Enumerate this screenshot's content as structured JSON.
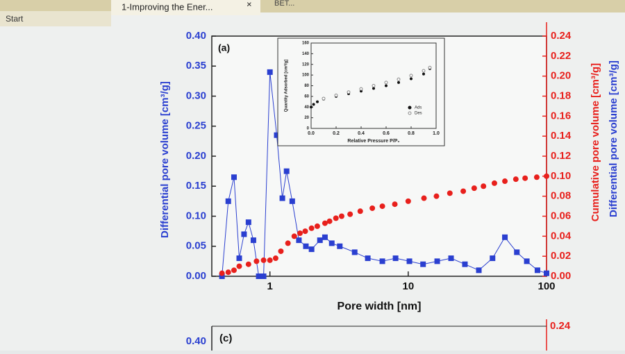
{
  "tabs": [
    "Start",
    "1-Improving the Ener...",
    "×",
    "BET..."
  ],
  "panel_c": {
    "label": "(c)",
    "ytick": "0.40",
    "y2tick": "0.24"
  },
  "chart_data": [
    {
      "type": "scatter",
      "annotation": "(a)",
      "xlabel": "Pore width [nm]",
      "ylabel": "Differential pore volume [cm³/g]",
      "y2labels": [
        "Cumulative pore volume [cm³/g]",
        "Differential pore volume [cm³/g]"
      ],
      "log_x": true,
      "xlim": [
        0.38,
        100
      ],
      "xticks": [
        1,
        10,
        100
      ],
      "ylim": [
        0,
        0.4
      ],
      "yticks": [
        {
          "value": 0,
          "label": "0.00"
        },
        {
          "value": 0.05,
          "label": "0.05"
        },
        {
          "value": 0.1,
          "label": "0.10"
        },
        {
          "value": 0.15,
          "label": "0.15"
        },
        {
          "value": 0.2,
          "label": "0.20"
        },
        {
          "value": 0.25,
          "label": "0.25"
        },
        {
          "value": 0.3,
          "label": "0.30"
        },
        {
          "value": 0.35,
          "label": "0.35"
        },
        {
          "value": 0.4,
          "label": "0.40"
        }
      ],
      "y2lim": [
        0,
        0.24
      ],
      "y2ticks": [
        {
          "value": 0,
          "label": "0.00"
        },
        {
          "value": 0.02,
          "label": "0.02"
        },
        {
          "value": 0.04,
          "label": "0.04"
        },
        {
          "value": 0.06,
          "label": "0.06"
        },
        {
          "value": 0.08,
          "label": "0.08"
        },
        {
          "value": 0.1,
          "label": "0.10"
        },
        {
          "value": 0.12,
          "label": "0.12"
        },
        {
          "value": 0.14,
          "label": "0.14"
        },
        {
          "value": 0.16,
          "label": "0.16"
        },
        {
          "value": 0.18,
          "label": "0.18"
        },
        {
          "value": 0.2,
          "label": "0.20"
        },
        {
          "value": 0.22,
          "label": "0.22"
        },
        {
          "value": 0.24,
          "label": "0.24"
        }
      ],
      "series": [
        {
          "color": "#2a3fd0",
          "marker": "square",
          "line": true,
          "x": [
            0.45,
            0.5,
            0.55,
            0.6,
            0.65,
            0.7,
            0.76,
            0.83,
            0.9,
            1.0,
            1.12,
            1.23,
            1.32,
            1.45,
            1.62,
            1.82,
            2.0,
            2.3,
            2.5,
            2.8,
            3.2,
            4.1,
            5.1,
            6.5,
            8.1,
            10.2,
            12.8,
            16.2,
            20.4,
            25.7,
            32.4,
            40.7,
            50,
            61,
            72,
            86,
            100
          ],
          "values": [
            0,
            0.125,
            0.165,
            0.03,
            0.07,
            0.09,
            0.06,
            0,
            0,
            0.34,
            0.235,
            0.13,
            0.175,
            0.125,
            0.06,
            0.05,
            0.045,
            0.06,
            0.065,
            0.055,
            0.05,
            0.04,
            0.03,
            0.025,
            0.03,
            0.025,
            0.02,
            0.025,
            0.03,
            0.02,
            0.01,
            0.03,
            0.065,
            0.04,
            0.025,
            0.01,
            0.005
          ]
        },
        {
          "color": "#e8201c",
          "marker": "circle",
          "line": false,
          "axis": "y2",
          "x": [
            0.45,
            0.5,
            0.55,
            0.6,
            0.7,
            0.8,
            0.9,
            1.0,
            1.1,
            1.2,
            1.35,
            1.5,
            1.65,
            1.8,
            2.0,
            2.2,
            2.5,
            2.7,
            3.0,
            3.3,
            3.8,
            4.5,
            5.5,
            6.5,
            8.0,
            10,
            13,
            16,
            20,
            25,
            30,
            35,
            42,
            50,
            60,
            70,
            85,
            100
          ],
          "values": [
            0.003,
            0.004,
            0.006,
            0.01,
            0.012,
            0.015,
            0.016,
            0.016,
            0.018,
            0.025,
            0.033,
            0.04,
            0.043,
            0.045,
            0.048,
            0.05,
            0.053,
            0.055,
            0.058,
            0.06,
            0.062,
            0.065,
            0.068,
            0.07,
            0.072,
            0.075,
            0.078,
            0.08,
            0.083,
            0.085,
            0.088,
            0.09,
            0.093,
            0.095,
            0.097,
            0.098,
            0.099,
            0.1
          ]
        }
      ]
    },
    {
      "type": "line",
      "xlabel": "Relative Pressure P/P₀",
      "ylabel": "Quantity Adsorbed [cm³/g]",
      "xlim": [
        0,
        1
      ],
      "xticks": [
        {
          "value": 0,
          "label": "0.0"
        },
        {
          "value": 0.2,
          "label": "0.2"
        },
        {
          "value": 0.4,
          "label": "0.4"
        },
        {
          "value": 0.6,
          "label": "0.6"
        },
        {
          "value": 0.8,
          "label": "0.8"
        },
        {
          "value": 1,
          "label": "1.0"
        }
      ],
      "ylim": [
        0,
        160
      ],
      "yticks": [
        0,
        20,
        40,
        60,
        80,
        100,
        120,
        140,
        160
      ],
      "legend": "lower-right",
      "series": [
        {
          "name": "Ads",
          "color": "#111111",
          "marker": "circle",
          "x": [
            0.0,
            0.02,
            0.05,
            0.1,
            0.2,
            0.3,
            0.4,
            0.5,
            0.6,
            0.7,
            0.8,
            0.9,
            0.95
          ],
          "values": [
            40,
            45,
            50,
            55,
            60,
            65,
            70,
            75,
            80,
            86,
            93,
            102,
            112
          ]
        },
        {
          "name": "Des",
          "color": "#888888",
          "marker": "open",
          "x": [
            0.95,
            0.9,
            0.8,
            0.7,
            0.6,
            0.5,
            0.4,
            0.3,
            0.2,
            0.1
          ],
          "values": [
            114,
            108,
            99,
            92,
            86,
            80,
            74,
            68,
            62,
            56
          ]
        }
      ]
    }
  ]
}
